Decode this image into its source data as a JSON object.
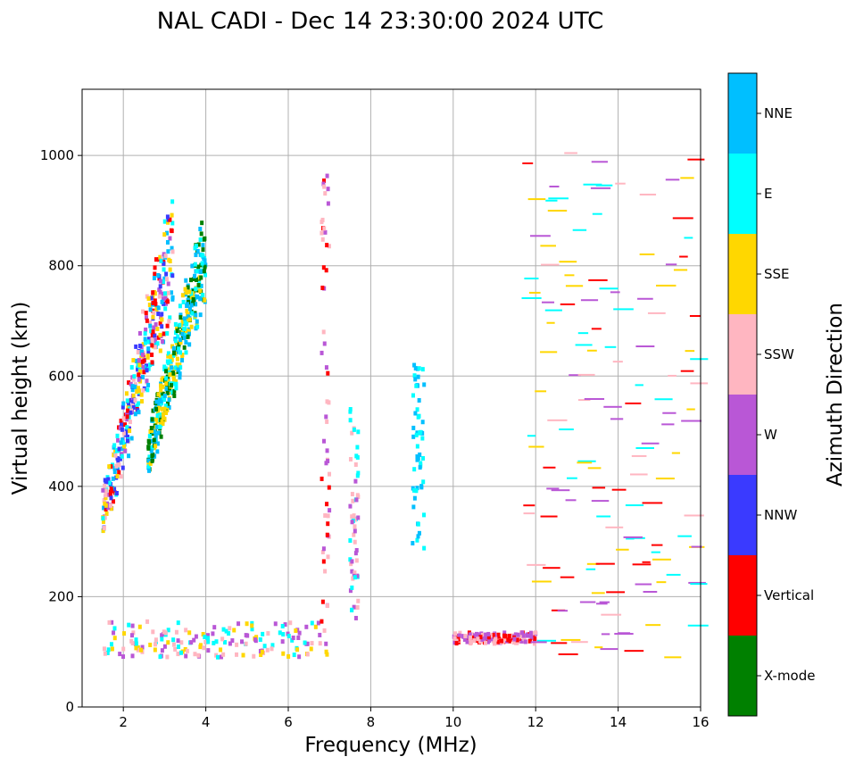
{
  "chart_data": {
    "type": "scatter",
    "title": "NAL CADI - Dec 14 23:30:00 2024 UTC",
    "xlabel": "Frequency (MHz)",
    "ylabel": "Virtual height (km)",
    "xlim": [
      1,
      16
    ],
    "ylim": [
      0,
      1120
    ],
    "xticks": [
      2,
      4,
      6,
      8,
      10,
      12,
      14,
      16
    ],
    "yticks": [
      0,
      200,
      400,
      600,
      800,
      1000
    ],
    "grid": true,
    "colorbar": {
      "label": "Azimuth Direction",
      "categories": [
        {
          "name": "X-mode",
          "color": "#008000"
        },
        {
          "name": "Vertical",
          "color": "#ff0000"
        },
        {
          "name": "NNW",
          "color": "#3a3aff"
        },
        {
          "name": "W",
          "color": "#b957d6"
        },
        {
          "name": "SSW",
          "color": "#ffb6c1"
        },
        {
          "name": "SSE",
          "color": "#ffd700"
        },
        {
          "name": "E",
          "color": "#00ffff"
        },
        {
          "name": "NNE",
          "color": "#00bfff"
        }
      ]
    },
    "clusters": [
      {
        "name": "F-layer trace (O)",
        "freq_range": [
          1.5,
          3.2
        ],
        "height_range": [
          290,
          920
        ],
        "slope": 420,
        "series": [
          "NNE",
          "E",
          "SSE",
          "SSW",
          "Vertical",
          "W",
          "NNW"
        ]
      },
      {
        "name": "F-layer trace (X)",
        "freq_range": [
          2.6,
          4.0
        ],
        "height_range": [
          400,
          880
        ],
        "slope": 380,
        "series": [
          "X-mode",
          "E",
          "NNE",
          "SSE"
        ]
      },
      {
        "name": "E-layer trace",
        "freq_range": [
          1.5,
          7.0
        ],
        "height_range": [
          90,
          155
        ],
        "series": [
          "W",
          "SSW",
          "SSE",
          "E"
        ]
      },
      {
        "name": "Sporadic E",
        "freq_range": [
          10.0,
          12.0
        ],
        "height_range": [
          115,
          135
        ],
        "series": [
          "Vertical",
          "W",
          "SSW"
        ]
      },
      {
        "name": "Interference 6.9 MHz",
        "freq_range": [
          6.8,
          7.0
        ],
        "height_range": [
          90,
          980
        ],
        "series": [
          "W",
          "Vertical",
          "SSW"
        ]
      },
      {
        "name": "Interference 7.6 MHz",
        "freq_range": [
          7.5,
          7.7
        ],
        "height_range": [
          160,
          540
        ],
        "series": [
          "SSW",
          "W",
          "E"
        ]
      },
      {
        "name": "Interference 9.1 MHz",
        "freq_range": [
          9.0,
          9.3
        ],
        "height_range": [
          280,
          620
        ],
        "series": [
          "NNE",
          "E"
        ]
      },
      {
        "name": "Noise 12-16 MHz",
        "freq_range": [
          11.8,
          16.0
        ],
        "height_range": [
          90,
          1010
        ],
        "series": [
          "SSE",
          "W",
          "Vertical",
          "SSW",
          "E"
        ]
      }
    ]
  }
}
